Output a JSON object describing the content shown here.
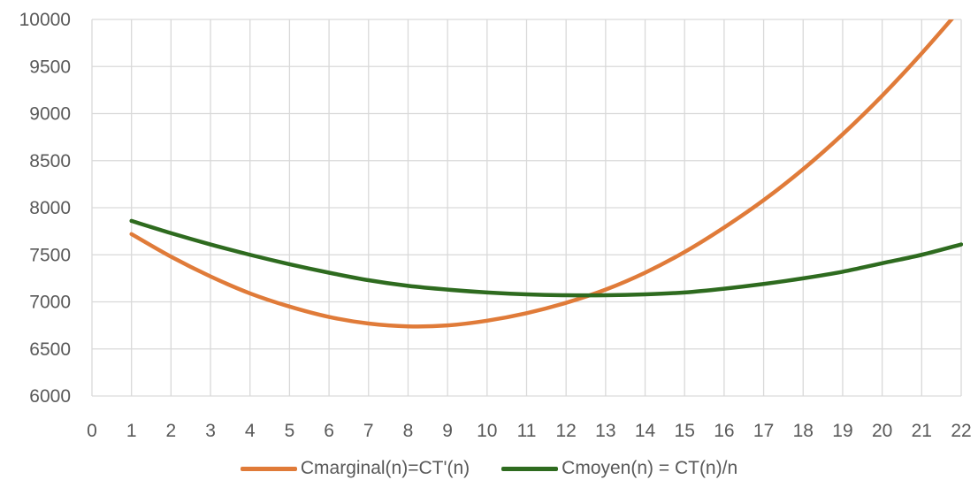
{
  "chart_data": {
    "type": "line",
    "title": "",
    "xlabel": "",
    "ylabel": "",
    "xlim": [
      0,
      22
    ],
    "ylim": [
      6000,
      10000
    ],
    "xticks": [
      0,
      1,
      2,
      3,
      4,
      5,
      6,
      7,
      8,
      9,
      10,
      11,
      12,
      13,
      14,
      15,
      16,
      17,
      18,
      19,
      20,
      21,
      22
    ],
    "yticks": [
      6000,
      6500,
      7000,
      7500,
      8000,
      8500,
      9000,
      9500,
      10000
    ],
    "grid": true,
    "legend_position": "bottom",
    "x": [
      1,
      2,
      3,
      4,
      5,
      6,
      7,
      8,
      9,
      10,
      11,
      12,
      13,
      14,
      15,
      16,
      17,
      18,
      19,
      20,
      21,
      22
    ],
    "series": [
      {
        "name": "Cmarginal(n)=CT'(n)",
        "color": "#e07b39",
        "values": [
          7720,
          7480,
          7270,
          7090,
          6950,
          6840,
          6770,
          6740,
          6750,
          6800,
          6880,
          6990,
          7130,
          7310,
          7530,
          7790,
          8080,
          8410,
          8780,
          9190,
          9640,
          10120
        ]
      },
      {
        "name": "Cmoyen(n) = CT(n)/n",
        "color": "#2e6b1f",
        "values": [
          7860,
          7730,
          7610,
          7500,
          7400,
          7310,
          7230,
          7170,
          7130,
          7100,
          7080,
          7070,
          7070,
          7080,
          7100,
          7140,
          7190,
          7250,
          7320,
          7410,
          7500,
          7610
        ]
      }
    ]
  }
}
